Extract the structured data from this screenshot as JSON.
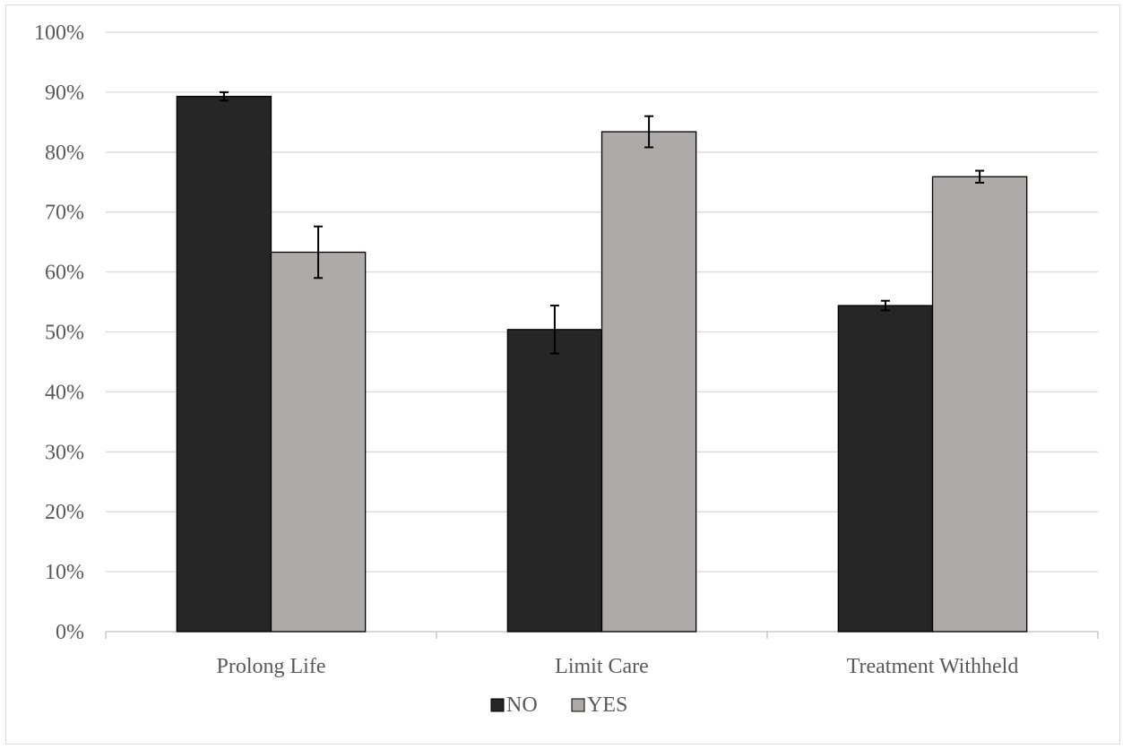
{
  "chart_data": {
    "type": "bar",
    "categories": [
      "Prolong Life",
      "Limit Care",
      "Treatment Withheld"
    ],
    "series": [
      {
        "name": "NO",
        "values": [
          89.3,
          50.4,
          54.4
        ],
        "errors": [
          0.7,
          4.0,
          0.8
        ],
        "color": "#262626"
      },
      {
        "name": "YES",
        "values": [
          63.3,
          83.4,
          75.9
        ],
        "errors": [
          4.3,
          2.6,
          1.0
        ],
        "color": "#aeaaaa"
      }
    ],
    "y_ticks": [
      "0%",
      "10%",
      "20%",
      "30%",
      "40%",
      "50%",
      "60%",
      "70%",
      "80%",
      "90%",
      "100%"
    ],
    "ylim": [
      0,
      100
    ],
    "y_unit": "%",
    "grid": true,
    "legend_position": "bottom-center",
    "error_bars": true,
    "title": "",
    "xlabel": "",
    "ylabel": ""
  }
}
